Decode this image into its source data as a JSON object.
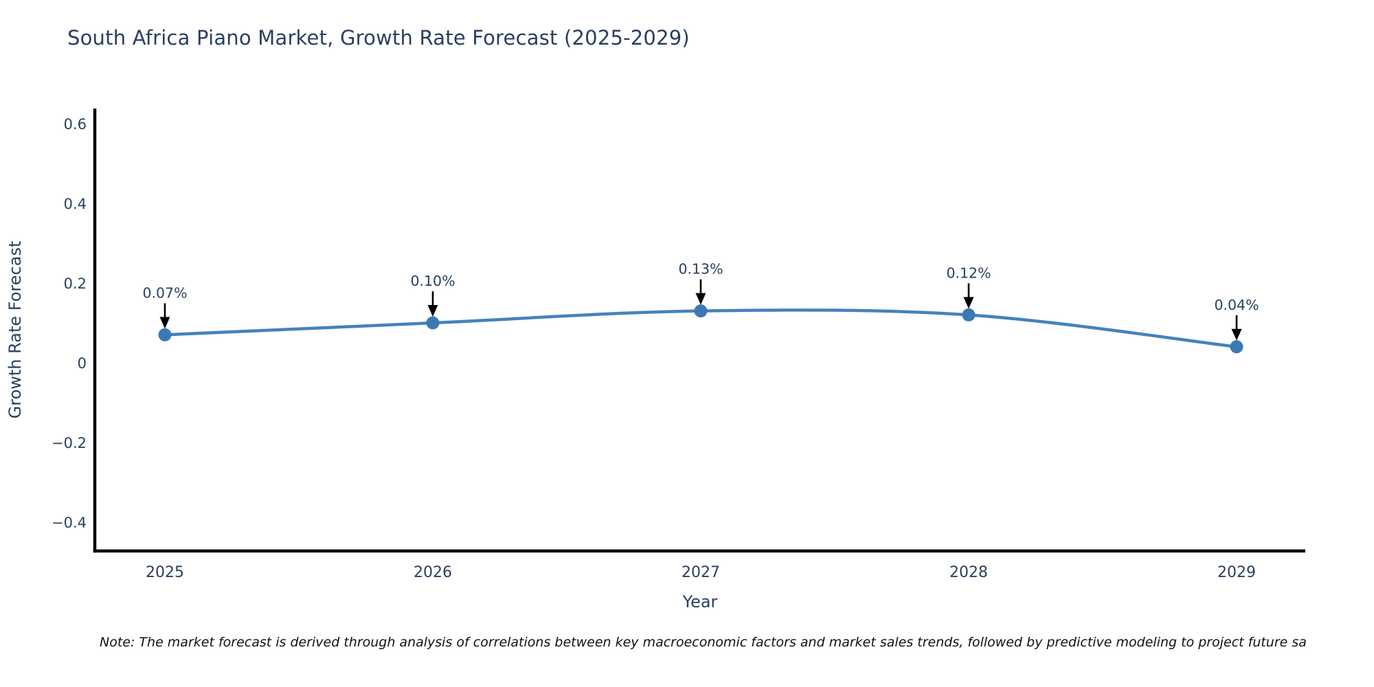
{
  "note": {
    "text": "Note: The market forecast is derived through analysis of correlations between key macroeconomic factors and market sales trends, followed by predictive modeling to project future sa"
  },
  "chart_data": {
    "type": "line",
    "title": "South Africa Piano Market, Growth Rate Forecast (2025-2029)",
    "xlabel": "Year",
    "ylabel": "Growth Rate Forecast",
    "x": [
      2025,
      2026,
      2027,
      2028,
      2029
    ],
    "series": [
      {
        "name": "Growth Rate Forecast",
        "values": [
          0.07,
          0.1,
          0.13,
          0.12,
          0.04
        ]
      }
    ],
    "annotations": [
      "0.07%",
      "0.10%",
      "0.13%",
      "0.12%",
      "0.04%"
    ],
    "yticks": [
      {
        "label": "0.6",
        "value": 0.6
      },
      {
        "label": "0.4",
        "value": 0.4
      },
      {
        "label": "0.2",
        "value": 0.2
      },
      {
        "label": "0",
        "value": 0.0
      },
      {
        "label": "−0.2",
        "value": -0.2
      },
      {
        "label": "−0.4",
        "value": -0.4
      }
    ],
    "xticks": [
      {
        "label": "2025",
        "value": 2025
      },
      {
        "label": "2026",
        "value": 2026
      },
      {
        "label": "2027",
        "value": 2027
      },
      {
        "label": "2028",
        "value": 2028
      },
      {
        "label": "2029",
        "value": 2029
      }
    ],
    "ylim": [
      -0.47,
      0.635
    ],
    "xlim": [
      2024.74,
      2029.26
    ],
    "grid": false,
    "legend": "none",
    "line_shape": "spline",
    "colors": {
      "line": "#4383bc",
      "marker": "#3b79b5",
      "axis": "#000000",
      "text": "#2a3f5f",
      "arrow": "#000000",
      "note": "#111111",
      "background": "#ffffff"
    }
  }
}
